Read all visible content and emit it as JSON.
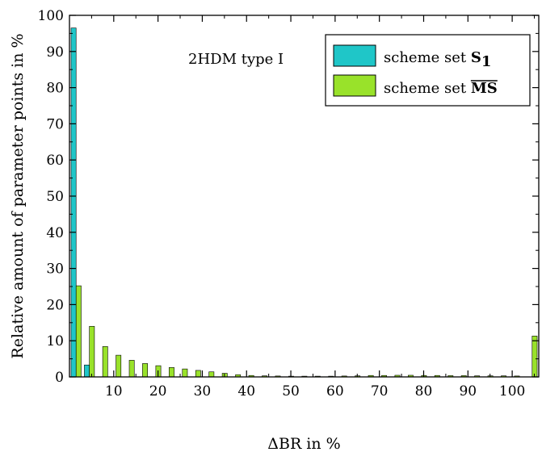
{
  "chart_data": {
    "type": "bar",
    "annotation": "2HDM type I",
    "xlabel": "ΔBR in %",
    "ylabel": "Relative amount of parameter points in %",
    "xlim": [
      0,
      106
    ],
    "ylim": [
      0,
      100
    ],
    "x_ticks": [
      10,
      20,
      30,
      40,
      50,
      60,
      70,
      80,
      90,
      100
    ],
    "y_ticks": [
      0,
      10,
      20,
      30,
      40,
      50,
      60,
      70,
      80,
      90,
      100
    ],
    "grid": false,
    "legend_position": "top-right",
    "bin_width": 3,
    "bin_centers": [
      1.5,
      4.5,
      7.5,
      10.5,
      13.5,
      16.5,
      19.5,
      22.5,
      25.5,
      28.5,
      31.5,
      34.5,
      37.5,
      40.5,
      43.5,
      46.5,
      49.5,
      52.5,
      55.5,
      58.5,
      61.5,
      64.5,
      67.5,
      70.5,
      73.5,
      76.5,
      79.5,
      82.5,
      85.5,
      88.5,
      91.5,
      94.5,
      97.5,
      100.5,
      104.5
    ],
    "series": [
      {
        "name_prefix": "scheme set ",
        "name_symbol": "S",
        "name_subscript": "1",
        "color": "#1fc6c8",
        "values": [
          96.5,
          3.3,
          0,
          0,
          0,
          0,
          0,
          0,
          0,
          0,
          0,
          0,
          0,
          0,
          0,
          0,
          0,
          0,
          0,
          0,
          0,
          0,
          0,
          0,
          0,
          0,
          0,
          0,
          0,
          0,
          0,
          0,
          0,
          0,
          0
        ]
      },
      {
        "name_prefix": "scheme set ",
        "name_symbol": "MS",
        "name_overline": true,
        "color": "#99e22a",
        "values": [
          25.2,
          14.0,
          8.4,
          6.0,
          4.6,
          3.7,
          3.1,
          2.6,
          2.2,
          1.8,
          1.4,
          1.0,
          0.6,
          0.4,
          0.3,
          0.25,
          0.2,
          0.2,
          0.2,
          0.2,
          0.25,
          0.3,
          0.4,
          0.4,
          0.45,
          0.45,
          0.4,
          0.4,
          0.35,
          0.35,
          0.3,
          0.3,
          0.3,
          0.25,
          11.3
        ]
      }
    ]
  }
}
